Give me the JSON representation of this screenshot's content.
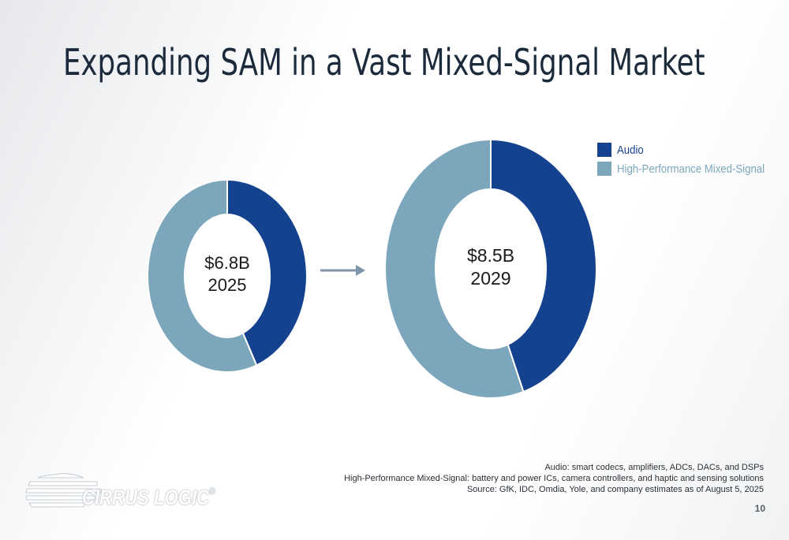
{
  "slide": {
    "title": "Expanding SAM in a Vast Mixed-Signal Market",
    "page_number": "10"
  },
  "logo": {
    "text": "CIRRUS LOGIC",
    "mark": "®"
  },
  "footnotes": [
    "Audio: smart codecs, amplifiers, ADCs, DACs, and DSPs",
    "High-Performance Mixed-Signal: battery and power ICs, camera controllers, and haptic and sensing solutions",
    "Source: GfK, IDC, Omdia, Yole, and company estimates as of August 5, 2025"
  ],
  "colors": {
    "audio": "#15428f",
    "hpms": "#7ca6bc",
    "title": "#1c2b3c",
    "arrow": "#8095ab"
  },
  "chart_data": [
    {
      "type": "pie",
      "variant": "donut",
      "center_label": [
        "$6.8B",
        "2025"
      ],
      "total": 6.8,
      "unit": "$B",
      "year": "2025",
      "slices": [
        {
          "name": "Audio",
          "share": 0.44
        },
        {
          "name": "High-Performance Mixed-Signal",
          "share": 0.56
        }
      ]
    },
    {
      "type": "pie",
      "variant": "donut",
      "center_label": [
        "$8.5B",
        "2029"
      ],
      "total": 8.5,
      "unit": "$B",
      "year": "2029",
      "slices": [
        {
          "name": "Audio",
          "share": 0.45
        },
        {
          "name": "High-Performance Mixed-Signal",
          "share": 0.55
        }
      ]
    }
  ],
  "legend": [
    {
      "label": "Audio",
      "color": "#15428f"
    },
    {
      "label": "High-Performance Mixed-Signal",
      "color": "#7ca6bc"
    }
  ]
}
